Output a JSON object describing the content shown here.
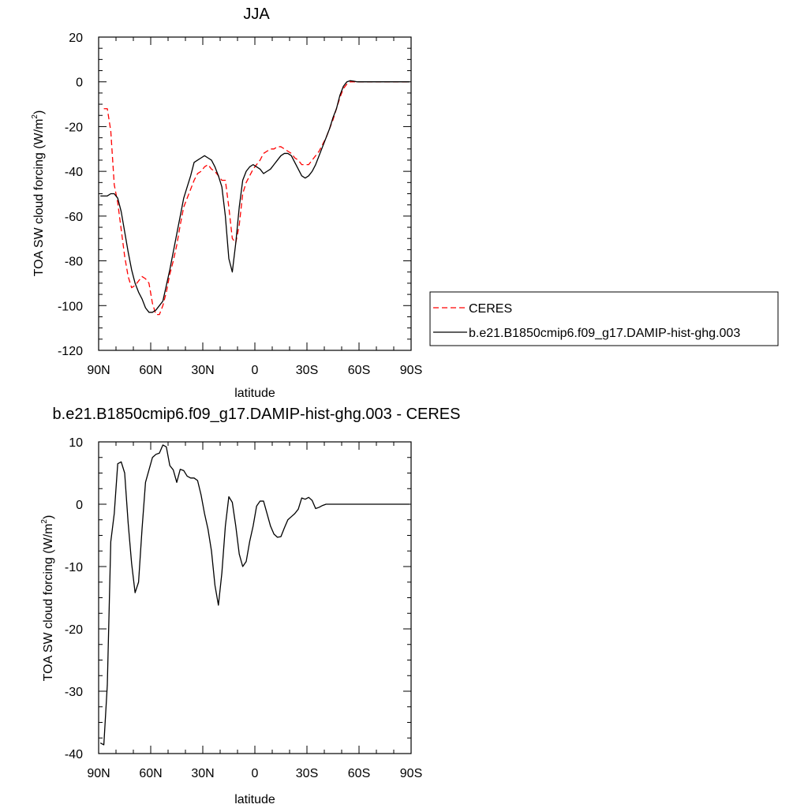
{
  "chart_data": [
    {
      "type": "line",
      "title": "JJA",
      "xlabel": "latitude",
      "ylabel": "TOA SW cloud forcing (W/m",
      "ylabel_sup": "2",
      "ylabel_close": ")",
      "xlim": [
        90,
        -90
      ],
      "ylim": [
        -120,
        20
      ],
      "x_tick_values": [
        90,
        60,
        30,
        0,
        -30,
        -60,
        -90
      ],
      "x_tick_labels": [
        "90N",
        "60N",
        "30N",
        "0",
        "30S",
        "60S",
        "90S"
      ],
      "y_tick_values": [
        20,
        0,
        -20,
        -40,
        -60,
        -80,
        -100,
        -120
      ],
      "y_tick_labels": [
        "20",
        "0",
        "-20",
        "-40",
        "-60",
        "-80",
        "-100",
        "-120"
      ],
      "legend": "right",
      "series": [
        {
          "name": "CERES",
          "color": "#ff0000",
          "dash": "dashed",
          "x": [
            87,
            85,
            83,
            81,
            79,
            77,
            75,
            73,
            71,
            69,
            67,
            65,
            63,
            61,
            59,
            57,
            55,
            53,
            51,
            49,
            47,
            45,
            43,
            41,
            39,
            37,
            35,
            33,
            31,
            29,
            27,
            25,
            23,
            21,
            19,
            17,
            15,
            13,
            11,
            9,
            7,
            5,
            3,
            1,
            -1,
            -3,
            -5,
            -7,
            -9,
            -11,
            -13,
            -15,
            -17,
            -19,
            -21,
            -23,
            -25,
            -27,
            -29,
            -31,
            -33,
            -35,
            -37,
            -39,
            -41,
            -43,
            -45,
            -47,
            -49,
            -51,
            -53,
            -55,
            -57,
            -59,
            -61,
            -63,
            -65,
            -67,
            -69,
            -71,
            -73,
            -75,
            -77,
            -79,
            -81,
            -83,
            -85,
            -87,
            -89
          ],
          "y": [
            -12,
            -12,
            -22,
            -46,
            -54,
            -66,
            -78,
            -87,
            -92,
            -91,
            -89,
            -87,
            -88,
            -90,
            -99,
            -104,
            -104,
            -100,
            -94,
            -86,
            -80,
            -73,
            -64,
            -56,
            -52,
            -48,
            -44,
            -41,
            -40,
            -38,
            -37,
            -39,
            -40,
            -42,
            -44,
            -44,
            -56,
            -70,
            -72,
            -64,
            -50,
            -45,
            -42,
            -39,
            -37,
            -35,
            -32,
            -31,
            -30,
            -30,
            -29,
            -29,
            -30,
            -31,
            -32,
            -34,
            -35,
            -37,
            -37,
            -37,
            -35,
            -33,
            -31,
            -28,
            -25,
            -21,
            -17,
            -12,
            -7,
            -3,
            -1,
            0,
            0,
            0,
            0,
            0,
            0,
            0,
            0,
            0,
            0,
            0,
            0,
            0,
            0,
            0,
            0,
            0,
            0
          ]
        },
        {
          "name": "b.e21.B1850cmip6.f09_g17.DAMIP-hist-ghg.003",
          "color": "#000000",
          "dash": "solid",
          "x": [
            89,
            87,
            85,
            83,
            81,
            79,
            77,
            75,
            73,
            71,
            69,
            67,
            65,
            63,
            61,
            59,
            57,
            55,
            53,
            51,
            49,
            47,
            45,
            43,
            41,
            39,
            37,
            35,
            33,
            31,
            29,
            27,
            25,
            23,
            21,
            19,
            17,
            15,
            13,
            11,
            9,
            7,
            5,
            3,
            1,
            -1,
            -3,
            -5,
            -7,
            -9,
            -11,
            -13,
            -15,
            -17,
            -19,
            -21,
            -23,
            -25,
            -27,
            -29,
            -31,
            -33,
            -35,
            -37,
            -39,
            -41,
            -43,
            -45,
            -47,
            -49,
            -51,
            -53,
            -55,
            -57,
            -59,
            -61,
            -63,
            -65,
            -67,
            -69,
            -71,
            -73,
            -75,
            -77,
            -79,
            -81,
            -83,
            -85,
            -87,
            -89
          ],
          "y": [
            -51,
            -51,
            -51,
            -50,
            -50,
            -52,
            -58,
            -67,
            -76,
            -84,
            -90,
            -94,
            -97,
            -101,
            -103,
            -103,
            -102,
            -100,
            -98,
            -91,
            -84,
            -76,
            -68,
            -60,
            -52,
            -47,
            -42,
            -36,
            -35,
            -34,
            -33,
            -34,
            -35,
            -38,
            -42,
            -47,
            -60,
            -79,
            -85,
            -72,
            -56,
            -44,
            -40,
            -38,
            -37,
            -38,
            -39,
            -41,
            -40,
            -39,
            -37,
            -35,
            -33,
            -32,
            -32,
            -33,
            -36,
            -39,
            -42,
            -43,
            -42,
            -40,
            -37,
            -33,
            -29,
            -25,
            -21,
            -16,
            -12,
            -6,
            -2,
            0,
            0.5,
            0.3,
            0,
            0,
            0,
            0,
            0,
            0,
            0,
            0,
            0,
            0,
            0,
            0,
            0,
            0,
            0,
            0
          ]
        }
      ]
    },
    {
      "type": "line",
      "title": "b.e21.B1850cmip6.f09_g17.DAMIP-hist-ghg.003 - CERES",
      "xlabel": "latitude",
      "ylabel": "TOA SW cloud forcing (W/m",
      "ylabel_sup": "2",
      "ylabel_close": ")",
      "xlim": [
        90,
        -90
      ],
      "ylim": [
        -40,
        10
      ],
      "x_tick_values": [
        90,
        60,
        30,
        0,
        -30,
        -60,
        -90
      ],
      "x_tick_labels": [
        "90N",
        "60N",
        "30N",
        "0",
        "30S",
        "60S",
        "90S"
      ],
      "y_tick_values": [
        10,
        0,
        -10,
        -20,
        -30,
        -40
      ],
      "y_tick_labels": [
        "10",
        "0",
        "-10",
        "-20",
        "-30",
        "-40"
      ],
      "series": [
        {
          "color": "#000000",
          "dash": "solid",
          "x": [
            89,
            87,
            85,
            83,
            81,
            79,
            77,
            75,
            73,
            71,
            69,
            67,
            65,
            63,
            61,
            59,
            57,
            55,
            53,
            51,
            49,
            47,
            45,
            43,
            41,
            39,
            37,
            35,
            33,
            31,
            29,
            27,
            25,
            23,
            21,
            19,
            17,
            15,
            13,
            11,
            9,
            7,
            5,
            3,
            1,
            -1,
            -3,
            -5,
            -7,
            -9,
            -11,
            -13,
            -15,
            -17,
            -19,
            -21,
            -23,
            -25,
            -27,
            -29,
            -31,
            -33,
            -35,
            -37,
            -39,
            -41,
            -43,
            -45,
            -47,
            -49,
            -51,
            -53,
            -55,
            -57,
            -59,
            -61,
            -63,
            -65,
            -67,
            -69,
            -71,
            -73,
            -75,
            -77,
            -79,
            -81,
            -83,
            -85,
            -87,
            -89
          ],
          "y": [
            -38.3,
            -38.6,
            -29,
            -6,
            -1.5,
            6.5,
            6.8,
            5,
            -3,
            -9.5,
            -14.2,
            -12.5,
            -4,
            3.5,
            5.5,
            7.5,
            8,
            8.2,
            9.5,
            9.2,
            6.2,
            5.5,
            3.5,
            5.6,
            5.4,
            4.5,
            4.2,
            4.2,
            3.8,
            1.5,
            -1.5,
            -4,
            -7.5,
            -13,
            -16.2,
            -11,
            -3.5,
            1.2,
            0.3,
            -3.5,
            -8,
            -10,
            -9.2,
            -6,
            -3.5,
            -0.3,
            0.5,
            0.5,
            -1.5,
            -3.5,
            -4.8,
            -5.3,
            -5.2,
            -3.8,
            -2.5,
            -2,
            -1.5,
            -0.8,
            1,
            0.8,
            1.1,
            0.6,
            -0.7,
            -0.5,
            -0.2,
            0,
            0,
            0,
            0,
            0,
            0,
            0,
            0,
            0,
            0,
            0,
            0,
            0,
            0,
            0,
            0,
            0,
            0,
            0,
            0,
            0,
            0,
            0,
            0,
            0
          ]
        }
      ]
    }
  ]
}
